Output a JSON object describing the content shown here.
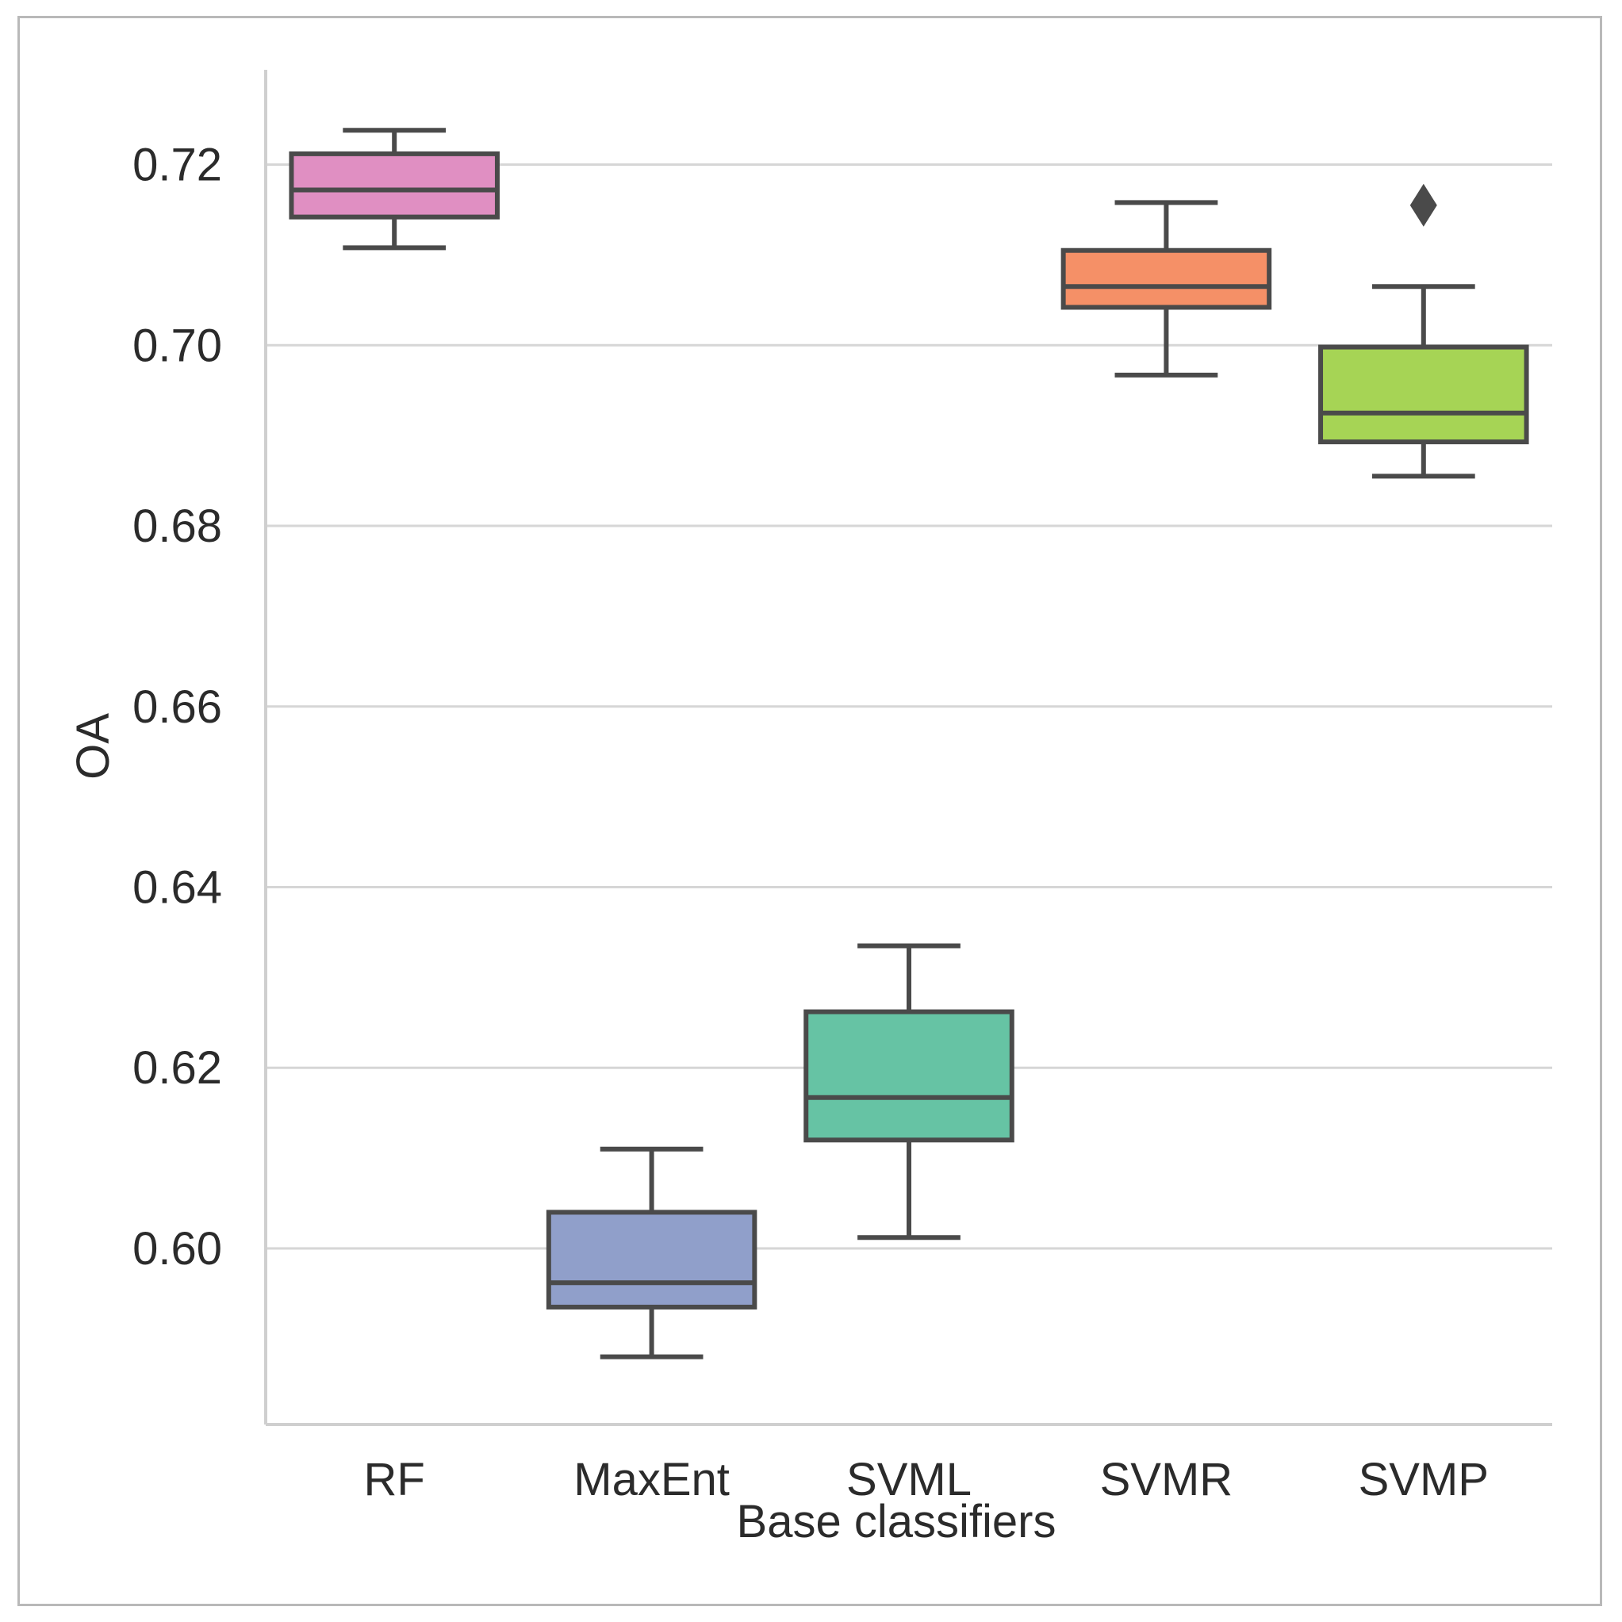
{
  "chart_data": {
    "type": "boxplot",
    "title": "",
    "xlabel": "Base classifiers",
    "ylabel": "OA",
    "ylim": [
      0.5805,
      0.7305
    ],
    "yticks": [
      0.6,
      0.62,
      0.64,
      0.66,
      0.68,
      0.7,
      0.72
    ],
    "ytick_labels": [
      "0.60",
      "0.62",
      "0.64",
      "0.66",
      "0.68",
      "0.70",
      "0.72"
    ],
    "grid": "horizontal",
    "categories": [
      "RF",
      "MaxEnt",
      "SVML",
      "SVMR",
      "SVMP"
    ],
    "boxes": [
      {
        "name": "RF",
        "color": "#e08fc2",
        "whisker_low": 0.7108,
        "q1": 0.7142,
        "median": 0.7172,
        "q3": 0.7212,
        "whisker_high": 0.7238,
        "outliers": []
      },
      {
        "name": "MaxEnt",
        "color": "#909fca",
        "whisker_low": 0.588,
        "q1": 0.5935,
        "median": 0.5962,
        "q3": 0.604,
        "whisker_high": 0.611,
        "outliers": []
      },
      {
        "name": "SVML",
        "color": "#66c3a4",
        "whisker_low": 0.6012,
        "q1": 0.612,
        "median": 0.6167,
        "q3": 0.6262,
        "whisker_high": 0.6335,
        "outliers": []
      },
      {
        "name": "SVMR",
        "color": "#f59067",
        "whisker_low": 0.6967,
        "q1": 0.7042,
        "median": 0.7065,
        "q3": 0.7105,
        "whisker_high": 0.7158,
        "outliers": []
      },
      {
        "name": "SVMP",
        "color": "#a6d455",
        "whisker_low": 0.6855,
        "q1": 0.6893,
        "median": 0.6925,
        "q3": 0.6998,
        "whisker_high": 0.7065,
        "outliers": [
          0.7155
        ]
      }
    ],
    "edge_color": "#4a4a4a"
  }
}
